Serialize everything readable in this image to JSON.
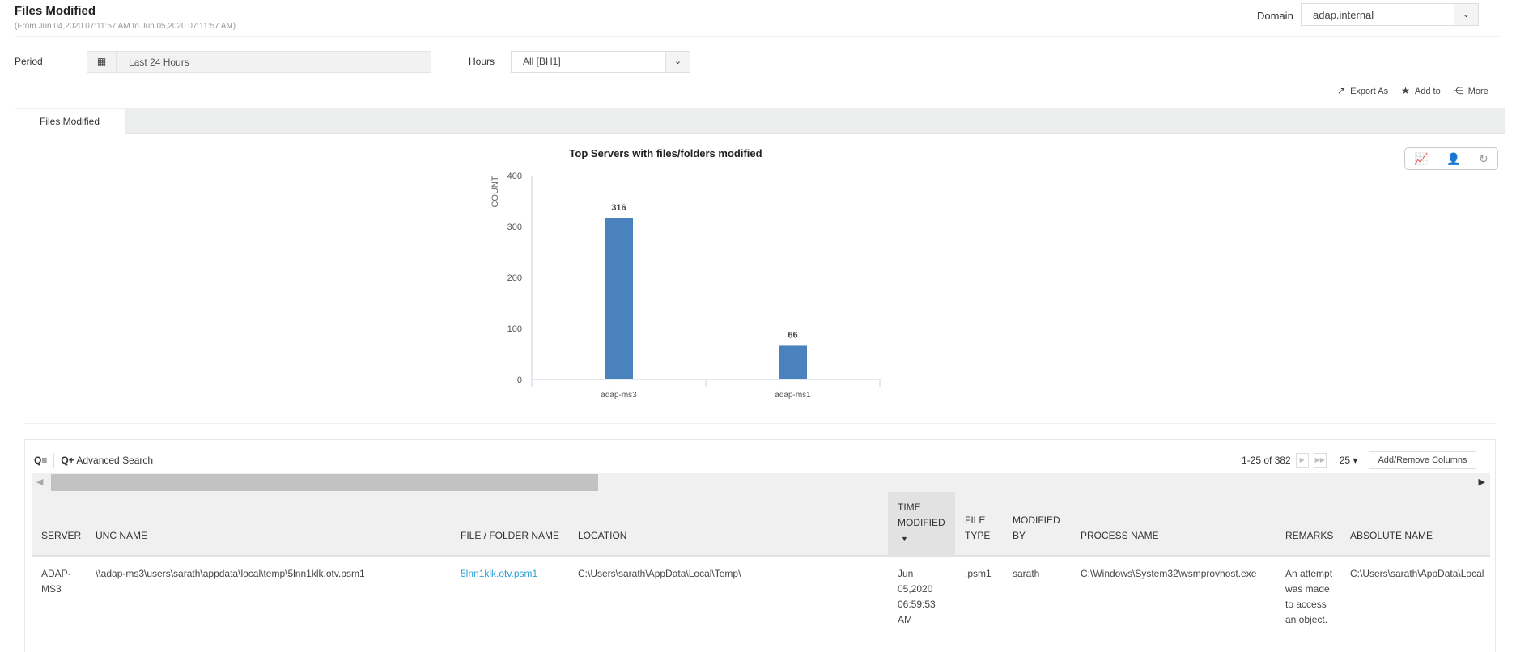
{
  "header": {
    "title": "Files Modified",
    "subtitle": "(From Jun 04,2020 07:11:57 AM to Jun 05,2020 07:11:57 AM)",
    "domain_label": "Domain",
    "domain_value": "adap.internal"
  },
  "filters": {
    "period_label": "Period",
    "period_value": "Last 24 Hours",
    "hours_label": "Hours",
    "hours_value": "All [BH1]"
  },
  "actions": {
    "export": "Export As",
    "add": "Add to",
    "more": "More"
  },
  "tabs": [
    {
      "label": "Files Modified",
      "active": true
    }
  ],
  "chart_data": {
    "type": "bar",
    "title": "Top Servers with files/folders modified",
    "xlabel": "",
    "ylabel": "COUNT",
    "categories": [
      "adap-ms3",
      "adap-ms1"
    ],
    "values": [
      316,
      66
    ],
    "ylim": [
      0,
      400
    ],
    "yticks": [
      0,
      100,
      200,
      300,
      400
    ],
    "color": "#4a82bd",
    "data_labels": true
  },
  "grid": {
    "advanced_search": "Advanced Search",
    "pagination": "1-25 of 382",
    "page_size": "25",
    "add_remove": "Add/Remove Columns",
    "columns": [
      "SERVER",
      "UNC NAME",
      "FILE / FOLDER NAME",
      "LOCATION",
      "TIME MODIFIED",
      "FILE TYPE",
      "MODIFIED BY",
      "PROCESS NAME",
      "REMARKS",
      "ABSOLUTE NAME"
    ],
    "sorted_column": "TIME MODIFIED",
    "sort_direction": "desc",
    "rows": [
      {
        "server": "ADAP-MS3",
        "unc": "\\\\adap-ms3\\users\\sarath\\appdata\\local\\temp\\5lnn1klk.otv.psm1",
        "file": "5lnn1klk.otv.psm1",
        "location": "C:\\Users\\sarath\\AppData\\Local\\Temp\\",
        "time": "Jun 05,2020 06:59:53 AM",
        "type": ".psm1",
        "by": "sarath",
        "process": "C:\\Windows\\System32\\wsmprovhost.exe",
        "remarks": "An attempt was made to access an object.",
        "absolute": "C:\\Users\\sarath\\AppData\\Local"
      }
    ]
  }
}
